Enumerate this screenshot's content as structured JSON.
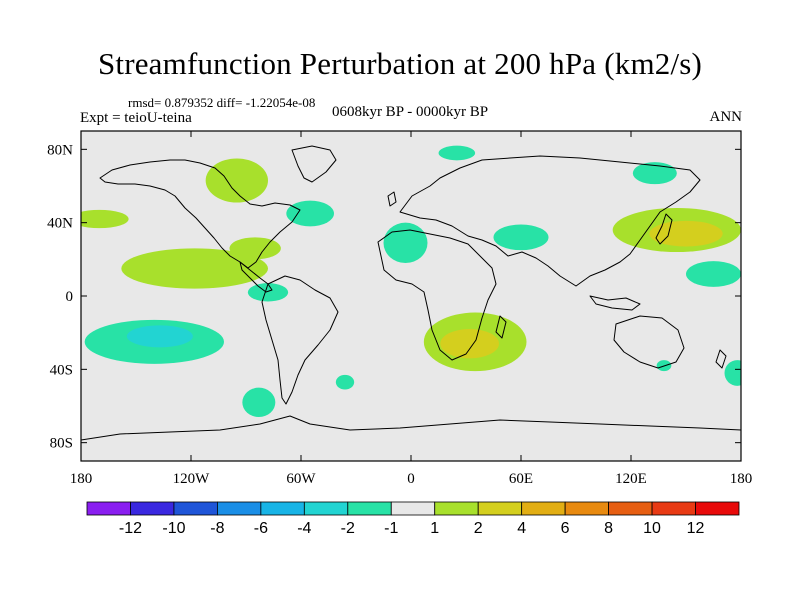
{
  "chart_data": {
    "type": "heatmap",
    "subtype": "global filled contour map",
    "title": "Streamfunction Perturbation at 200 hPa (km2/s)",
    "stats_line": "rmsd= 0.879352 diff= -1.22054e-08",
    "experiment": "Expt = teioU-teina",
    "period": "0608kyr BP - 0000kyr BP",
    "season": "ANN",
    "x_ticks": [
      "180",
      "120W",
      "60W",
      "0",
      "60E",
      "120E",
      "180"
    ],
    "x_tick_values": [
      -180,
      -120,
      -60,
      0,
      60,
      120,
      180
    ],
    "y_ticks": [
      "80N",
      "40N",
      "0",
      "40S",
      "80S"
    ],
    "y_tick_values": [
      80,
      40,
      0,
      -40,
      -80
    ],
    "xlim": [
      -180,
      180
    ],
    "ylim": [
      -90,
      90
    ],
    "colorbar": {
      "labels": [
        "-12",
        "-10",
        "-8",
        "-6",
        "-4",
        "-2",
        "-1",
        "1",
        "2",
        "4",
        "6",
        "8",
        "10",
        "12"
      ],
      "colors": [
        "#8a1ef0",
        "#3a28e0",
        "#1f55d8",
        "#1a8ee6",
        "#18b4e6",
        "#22d4d2",
        "#28e2a6",
        "#e8e8e8",
        "#a8e02c",
        "#d4cf1e",
        "#e2ae14",
        "#e88a10",
        "#e65e12",
        "#e83a14",
        "#e80a0a"
      ]
    },
    "anomalies": [
      {
        "name": "North America high",
        "lon": -95,
        "lat": 63,
        "rlon": 17,
        "rlat": 12,
        "level": "1 to 2",
        "color": "#a8e02c"
      },
      {
        "name": "North Atlantic",
        "lon": -55,
        "lat": 45,
        "rlon": 13,
        "rlat": 7,
        "level": "-2 to -1",
        "color": "#28e2a6"
      },
      {
        "name": "Arctic Europe",
        "lon": 25,
        "lat": 78,
        "rlon": 10,
        "rlat": 4,
        "level": "-2 to -1",
        "color": "#28e2a6"
      },
      {
        "name": "North Pacific east",
        "lon": -170,
        "lat": 42,
        "rlon": 16,
        "rlat": 5,
        "level": "1 to 2",
        "color": "#a8e02c"
      },
      {
        "name": "Siberia",
        "lon": 133,
        "lat": 67,
        "rlon": 12,
        "rlat": 6,
        "level": "-2 to -1",
        "color": "#28e2a6"
      },
      {
        "name": "Western Europe",
        "lon": -3,
        "lat": 29,
        "rlon": 12,
        "rlat": 11,
        "level": "-2 to -1",
        "color": "#28e2a6"
      },
      {
        "name": "Central Asia",
        "lon": 60,
        "lat": 32,
        "rlon": 15,
        "rlat": 7,
        "level": "-2 to -1",
        "color": "#28e2a6"
      },
      {
        "name": "West Pacific",
        "lon": 145,
        "lat": 36,
        "rlon": 35,
        "rlat": 12,
        "level": "1 to 2",
        "color": "#a8e02c"
      },
      {
        "name": "West Pacific core",
        "lon": 150,
        "lat": 34,
        "rlon": 20,
        "rlat": 7,
        "level": "2 to 4",
        "color": "#d4cf1e"
      },
      {
        "name": "Western Pacific tropics",
        "lon": 165,
        "lat": 12,
        "rlon": 15,
        "rlat": 7,
        "level": "-2 to -1",
        "color": "#28e2a6"
      },
      {
        "name": "Tropical NE Pacific",
        "lon": -118,
        "lat": 15,
        "rlon": 40,
        "rlat": 11,
        "level": "1 to 2",
        "color": "#a8e02c"
      },
      {
        "name": "Caribbean",
        "lon": -85,
        "lat": 26,
        "rlon": 14,
        "rlat": 6,
        "level": "1 to 2",
        "color": "#a8e02c"
      },
      {
        "name": "Amazon",
        "lon": -78,
        "lat": 2,
        "rlon": 11,
        "rlat": 5,
        "level": "-2 to -1",
        "color": "#28e2a6"
      },
      {
        "name": "South Pacific",
        "lon": -140,
        "lat": -25,
        "rlon": 38,
        "rlat": 12,
        "level": "-2 to -1",
        "color": "#28e2a6"
      },
      {
        "name": "South Pacific core",
        "lon": -137,
        "lat": -22,
        "rlon": 18,
        "rlat": 6,
        "level": "-4 to -2",
        "color": "#22d4d2"
      },
      {
        "name": "Southern Africa",
        "lon": 35,
        "lat": -25,
        "rlon": 28,
        "rlat": 16,
        "level": "1 to 2",
        "color": "#a8e02c"
      },
      {
        "name": "Southern Africa core",
        "lon": 32,
        "lat": -26,
        "rlon": 16,
        "rlat": 8,
        "level": "2 to 4",
        "color": "#d4cf1e"
      },
      {
        "name": "South Atlantic",
        "lon": -36,
        "lat": -47,
        "rlon": 5,
        "rlat": 4,
        "level": "-2 to -1",
        "color": "#28e2a6"
      },
      {
        "name": "Patagonia",
        "lon": -83,
        "lat": -58,
        "rlon": 9,
        "rlat": 8,
        "level": "-2 to -1",
        "color": "#28e2a6"
      },
      {
        "name": "South Indian / Australia",
        "lon": 138,
        "lat": -38,
        "rlon": 4,
        "rlat": 3,
        "level": "-2 to -1",
        "color": "#28e2a6"
      },
      {
        "name": "Southwest Pacific",
        "lon": 178,
        "lat": -42,
        "rlon": 7,
        "rlat": 7,
        "level": "-2 to -1",
        "color": "#28e2a6"
      }
    ]
  }
}
